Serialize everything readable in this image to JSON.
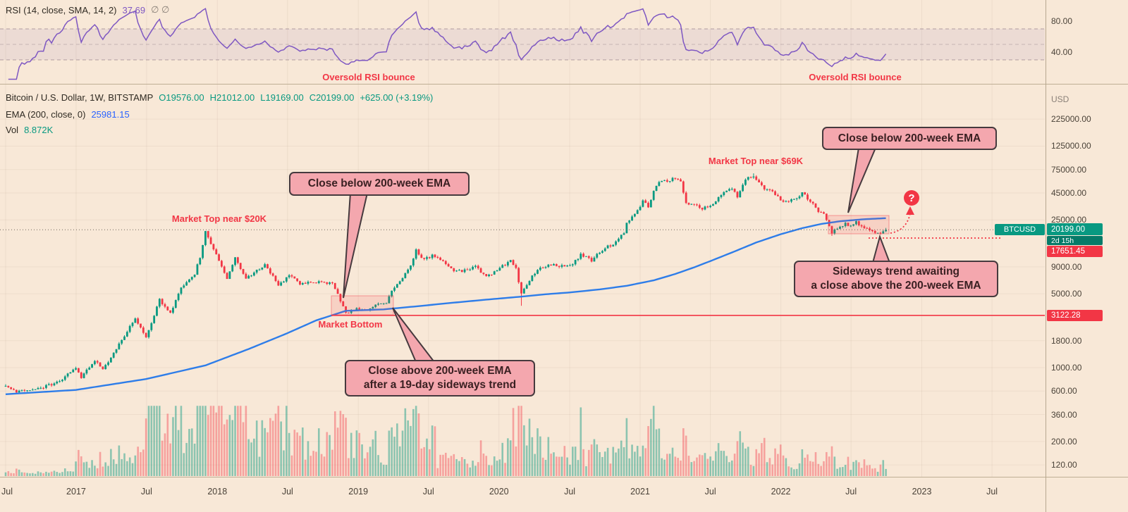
{
  "colors": {
    "background": "#f8e8d7",
    "up": "#089981",
    "down": "#f23645",
    "ema": "#2e7de9",
    "rsi": "#7e57c2",
    "callout_bg": "#f4a7ae",
    "callout_border": "#463a3e",
    "tag_green": "#089981",
    "tag_red": "#f23645",
    "annotation_red": "#f23645"
  },
  "rsi_pane": {
    "title": "RSI (14, close, SMA, 14, 2)",
    "value": "37.69",
    "empty_markers": "∅  ∅",
    "ticks": [
      "80.00",
      "40.00"
    ],
    "bands": [
      70,
      50,
      30
    ]
  },
  "main_pane": {
    "symbol_title": "Bitcoin / U.S. Dollar, 1W, BITSTAMP",
    "ohlc": {
      "open": "O19576.00",
      "high": "H21012.00",
      "low": "L19169.00",
      "close": "C20199.00",
      "change": "+625.00 (+3.19%)"
    },
    "ema_label": "EMA (200, close, 0)",
    "ema_value": "25981.15",
    "vol_label": "Vol",
    "vol_value": "8.872K"
  },
  "annotations": {
    "oversold_1": "Oversold RSI bounce",
    "oversold_2": "Oversold RSI bounce",
    "market_top_20k": "Market Top near $20K",
    "market_top_69k": "Market Top near $69K",
    "market_bottom": "Market Bottom",
    "close_below_1": "Close below 200-week EMA",
    "close_below_2": "Close below 200-week EMA",
    "close_above": "Close above 200-week EMA\nafter a 19-day sideways trend",
    "sideways": "Sideways trend awaiting\na close above the 200-week EMA",
    "question_mark": "?"
  },
  "price_axis": {
    "unit": "USD",
    "ticks": [
      "225000.00",
      "125000.00",
      "75000.00",
      "45000.00",
      "25000.00",
      "9000.00",
      "5000.00",
      "1800.00",
      "1000.00",
      "600.00",
      "360.00",
      "200.00",
      "120.00"
    ],
    "tags": {
      "symbol": "BTCUSD",
      "last_price": "20199.00",
      "countdown": "2d 15h",
      "low_tag": "17651.45",
      "support_tag": "3122.28"
    }
  },
  "time_axis": {
    "labels": [
      {
        "text": "Jul",
        "week": 0
      },
      {
        "text": "2017",
        "week": 26.1
      },
      {
        "text": "Jul",
        "week": 52.2
      },
      {
        "text": "2018",
        "week": 78.4
      },
      {
        "text": "Jul",
        "week": 104.4
      },
      {
        "text": "2019",
        "week": 130.6
      },
      {
        "text": "Jul",
        "week": 156.6
      },
      {
        "text": "2020",
        "week": 182.7
      },
      {
        "text": "Jul",
        "week": 208.9
      },
      {
        "text": "2021",
        "week": 235.0
      },
      {
        "text": "Jul",
        "week": 261.0
      },
      {
        "text": "2022",
        "week": 287.1
      },
      {
        "text": "Jul",
        "week": 313.1
      },
      {
        "text": "2023",
        "week": 339.3
      },
      {
        "text": "Jul",
        "week": 365.3
      }
    ]
  },
  "chart_data": {
    "type": "candlestick",
    "title": "Bitcoin / U.S. Dollar, 1W, BITSTAMP",
    "x_start": "Jul 2016",
    "x_end": "Oct 2022",
    "weeks_shown": 327,
    "y_scale": "log",
    "y_unit": "USD",
    "y_ticks": [
      225000,
      125000,
      75000,
      45000,
      25000,
      9000,
      5000,
      1800,
      1000,
      600,
      360,
      200,
      120
    ],
    "last": {
      "open": 19576.0,
      "high": 21012.0,
      "low": 19169.0,
      "close": 20199.0,
      "change": "+625.00 (+3.19%)"
    },
    "levels": {
      "last_close": 20199.0,
      "prior_low": 17651.45,
      "support": 3122.28,
      "ema200": 25981.15,
      "rsi": 37.69,
      "volume": "8.872K"
    },
    "price_anchors_weekly": [
      [
        0,
        670
      ],
      [
        4,
        590
      ],
      [
        13,
        640
      ],
      [
        20,
        740
      ],
      [
        26,
        1000
      ],
      [
        28,
        800
      ],
      [
        33,
        1180
      ],
      [
        36,
        950
      ],
      [
        44,
        2000
      ],
      [
        48,
        2900
      ],
      [
        52,
        1950
      ],
      [
        57,
        4400
      ],
      [
        61,
        3300
      ],
      [
        65,
        5700
      ],
      [
        70,
        7800
      ],
      [
        72,
        11000
      ],
      [
        74,
        19300
      ],
      [
        77,
        13500
      ],
      [
        79,
        10500
      ],
      [
        82,
        7000
      ],
      [
        85,
        11300
      ],
      [
        89,
        6900
      ],
      [
        93,
        8200
      ],
      [
        96,
        9500
      ],
      [
        101,
        6100
      ],
      [
        105,
        7400
      ],
      [
        109,
        6300
      ],
      [
        113,
        6500
      ],
      [
        117,
        6400
      ],
      [
        121,
        6350
      ],
      [
        124,
        4300
      ],
      [
        126,
        3250
      ],
      [
        129,
        3600
      ],
      [
        133,
        3500
      ],
      [
        137,
        3900
      ],
      [
        141,
        4100
      ],
      [
        143,
        5300
      ],
      [
        147,
        7200
      ],
      [
        150,
        9000
      ],
      [
        152,
        13000
      ],
      [
        155,
        10500
      ],
      [
        158,
        11500
      ],
      [
        162,
        10000
      ],
      [
        166,
        8200
      ],
      [
        170,
        8300
      ],
      [
        174,
        9100
      ],
      [
        178,
        7200
      ],
      [
        182,
        8400
      ],
      [
        187,
        10200
      ],
      [
        189,
        8800
      ],
      [
        191,
        4900
      ],
      [
        194,
        6800
      ],
      [
        198,
        8800
      ],
      [
        202,
        9500
      ],
      [
        206,
        9100
      ],
      [
        209,
        9200
      ],
      [
        213,
        11700
      ],
      [
        217,
        10400
      ],
      [
        221,
        13000
      ],
      [
        226,
        15500
      ],
      [
        229,
        19000
      ],
      [
        230,
        23000
      ],
      [
        233,
        29000
      ],
      [
        235,
        34000
      ],
      [
        236,
        39000
      ],
      [
        238,
        32000
      ],
      [
        240,
        48000
      ],
      [
        242,
        57000
      ],
      [
        245,
        59000
      ],
      [
        248,
        62000
      ],
      [
        250,
        57000
      ],
      [
        252,
        36000
      ],
      [
        255,
        35500
      ],
      [
        258,
        32000
      ],
      [
        261,
        33500
      ],
      [
        264,
        40000
      ],
      [
        266,
        47000
      ],
      [
        269,
        48000
      ],
      [
        271,
        42000
      ],
      [
        274,
        61000
      ],
      [
        277,
        65000
      ],
      [
        279,
        57000
      ],
      [
        281,
        49000
      ],
      [
        284,
        46000
      ],
      [
        286,
        41500
      ],
      [
        288,
        36800
      ],
      [
        291,
        39000
      ],
      [
        294,
        42000
      ],
      [
        295,
        46500
      ],
      [
        297,
        40000
      ],
      [
        299,
        36000
      ],
      [
        301,
        29500
      ],
      [
        303,
        29000
      ],
      [
        305,
        21500
      ],
      [
        306,
        19000
      ],
      [
        308,
        20800
      ],
      [
        311,
        23200
      ],
      [
        313,
        21500
      ],
      [
        315,
        24400
      ],
      [
        317,
        21300
      ],
      [
        320,
        19800
      ],
      [
        322,
        18800
      ],
      [
        324,
        19200
      ],
      [
        326,
        20199
      ]
    ],
    "ema_anchors_weekly": [
      [
        0,
        560
      ],
      [
        26,
        615
      ],
      [
        52,
        780
      ],
      [
        74,
        1050
      ],
      [
        90,
        1500
      ],
      [
        104,
        2100
      ],
      [
        115,
        2800
      ],
      [
        126,
        3450
      ],
      [
        140,
        3560
      ],
      [
        152,
        3800
      ],
      [
        165,
        4100
      ],
      [
        178,
        4400
      ],
      [
        191,
        4700
      ],
      [
        200,
        4950
      ],
      [
        209,
        5150
      ],
      [
        220,
        5500
      ],
      [
        230,
        5950
      ],
      [
        240,
        6700
      ],
      [
        248,
        7700
      ],
      [
        255,
        8900
      ],
      [
        261,
        10200
      ],
      [
        270,
        12600
      ],
      [
        278,
        15300
      ],
      [
        287,
        18300
      ],
      [
        295,
        20900
      ],
      [
        302,
        22900
      ],
      [
        309,
        24300
      ],
      [
        318,
        25400
      ],
      [
        326,
        25981
      ]
    ],
    "events": [
      {
        "week": 74,
        "price": 19666,
        "label": "Market Top near $20K"
      },
      {
        "week": 124,
        "label": "Close below 200-week EMA"
      },
      {
        "week": 126,
        "price": 3122,
        "label": "Market Bottom"
      },
      {
        "week": 143,
        "label": "Close above 200-week EMA after a 19-day sideways trend"
      },
      {
        "week": 277,
        "price": 69000,
        "label": "Market Top near $69K"
      },
      {
        "week": 308,
        "label": "Close below 200-week EMA"
      },
      {
        "week": 326,
        "label": "Sideways trend awaiting a close above the 200-week EMA"
      }
    ]
  }
}
